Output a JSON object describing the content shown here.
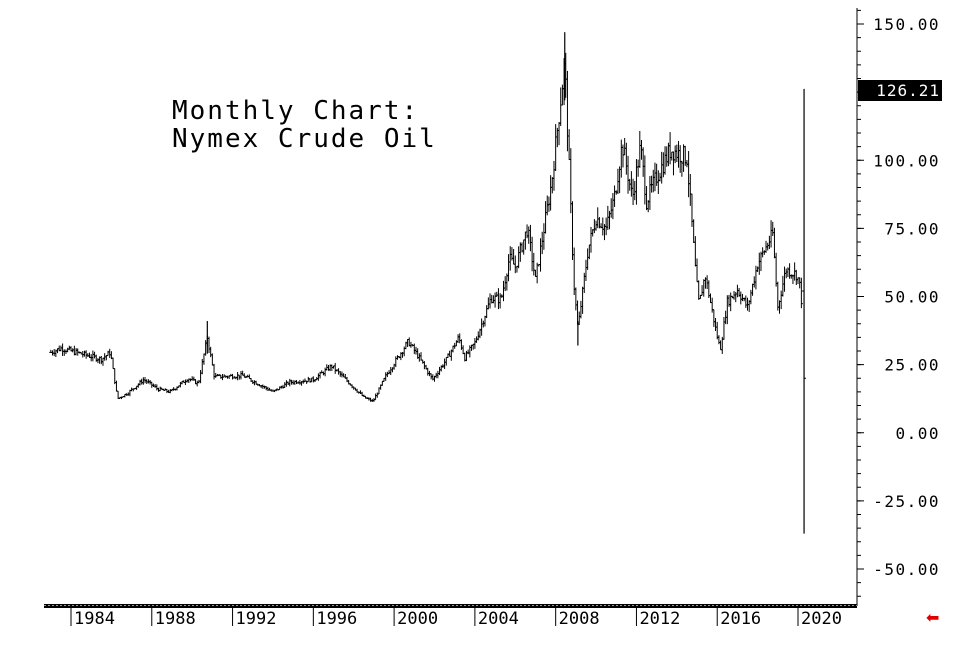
{
  "chart_data": {
    "type": "ohlc",
    "title_lines": [
      "Monthly Chart:",
      "Nymex Crude Oil"
    ],
    "ylim": [
      -62,
      155
    ],
    "y_ticks": [
      150,
      125,
      100,
      75,
      50,
      25,
      0,
      -25,
      -50
    ],
    "y_tick_labels": [
      "150.00",
      "",
      "100.00",
      "75.00",
      "50.00",
      "25.00",
      "0.00",
      "-25.00",
      "-50.00"
    ],
    "x_ticks": [
      1984,
      1988,
      1992,
      1996,
      2000,
      2004,
      2008,
      2012,
      2016,
      2020
    ],
    "x_tick_labels": [
      "1984",
      "1988",
      "1992",
      "1996",
      "2000",
      "2004",
      "2008",
      "2012",
      "2016",
      "2020"
    ],
    "xlim": [
      1982.6,
      2021.0
    ],
    "last_value_label": "126.21",
    "anchors": [
      {
        "t": 1983.0,
        "v": 29.5
      },
      {
        "t": 1983.5,
        "v": 31.0
      },
      {
        "t": 1984.5,
        "v": 29.0
      },
      {
        "t": 1985.5,
        "v": 27.0
      },
      {
        "t": 1985.95,
        "v": 29.5
      },
      {
        "t": 1986.3,
        "v": 12.5
      },
      {
        "t": 1986.8,
        "v": 14.5
      },
      {
        "t": 1987.6,
        "v": 19.5
      },
      {
        "t": 1988.3,
        "v": 16.0
      },
      {
        "t": 1988.9,
        "v": 15.0
      },
      {
        "t": 1989.8,
        "v": 20.0
      },
      {
        "t": 1990.3,
        "v": 18.0
      },
      {
        "t": 1990.75,
        "v": 35.0
      },
      {
        "t": 1991.1,
        "v": 20.5
      },
      {
        "t": 1992.5,
        "v": 21.0
      },
      {
        "t": 1993.5,
        "v": 17.0
      },
      {
        "t": 1994.0,
        "v": 15.0
      },
      {
        "t": 1994.8,
        "v": 18.5
      },
      {
        "t": 1996.0,
        "v": 19.5
      },
      {
        "t": 1996.9,
        "v": 24.5
      },
      {
        "t": 1997.6,
        "v": 19.5
      },
      {
        "t": 1998.5,
        "v": 13.0
      },
      {
        "t": 1998.95,
        "v": 11.5
      },
      {
        "t": 1999.6,
        "v": 21.0
      },
      {
        "t": 2000.7,
        "v": 33.5
      },
      {
        "t": 2001.2,
        "v": 28.0
      },
      {
        "t": 2001.9,
        "v": 19.5
      },
      {
        "t": 2002.6,
        "v": 27.0
      },
      {
        "t": 2003.2,
        "v": 35.0
      },
      {
        "t": 2003.5,
        "v": 27.5
      },
      {
        "t": 2004.0,
        "v": 33.0
      },
      {
        "t": 2004.8,
        "v": 49.5
      },
      {
        "t": 2005.3,
        "v": 49.0
      },
      {
        "t": 2005.7,
        "v": 64.0
      },
      {
        "t": 2006.0,
        "v": 61.0
      },
      {
        "t": 2006.6,
        "v": 75.0
      },
      {
        "t": 2007.0,
        "v": 56.0
      },
      {
        "t": 2007.8,
        "v": 92.0
      },
      {
        "t": 2008.45,
        "v": 136.0
      },
      {
        "t": 2008.9,
        "v": 55.0
      },
      {
        "t": 2009.1,
        "v": 38.0
      },
      {
        "t": 2009.6,
        "v": 67.0
      },
      {
        "t": 2010.0,
        "v": 79.0
      },
      {
        "t": 2010.5,
        "v": 75.0
      },
      {
        "t": 2010.9,
        "v": 86.0
      },
      {
        "t": 2011.3,
        "v": 106.0
      },
      {
        "t": 2011.8,
        "v": 86.0
      },
      {
        "t": 2012.2,
        "v": 105.0
      },
      {
        "t": 2012.5,
        "v": 85.0
      },
      {
        "t": 2013.0,
        "v": 94.0
      },
      {
        "t": 2013.7,
        "v": 104.0
      },
      {
        "t": 2014.5,
        "v": 101.0
      },
      {
        "t": 2014.95,
        "v": 57.0
      },
      {
        "t": 2015.1,
        "v": 47.0
      },
      {
        "t": 2015.4,
        "v": 58.0
      },
      {
        "t": 2015.95,
        "v": 37.0
      },
      {
        "t": 2016.15,
        "v": 30.5
      },
      {
        "t": 2016.5,
        "v": 48.0
      },
      {
        "t": 2017.0,
        "v": 52.5
      },
      {
        "t": 2017.5,
        "v": 46.0
      },
      {
        "t": 2018.0,
        "v": 62.0
      },
      {
        "t": 2018.75,
        "v": 73.0
      },
      {
        "t": 2019.0,
        "v": 46.0
      },
      {
        "t": 2019.4,
        "v": 60.0
      },
      {
        "t": 2019.95,
        "v": 58.0
      },
      {
        "t": 2020.15,
        "v": 52.0
      },
      {
        "t": 2020.3,
        "v": 22.0
      }
    ],
    "final_bar": {
      "t": 2020.3,
      "high": 126.21,
      "low": -37.0,
      "open": 52.0,
      "close": 20.0
    },
    "spike_bars": [
      {
        "t": 1990.75,
        "high": 41.0,
        "low": 29.0
      },
      {
        "t": 2008.45,
        "high": 147.0,
        "low": 122.0
      },
      {
        "t": 2009.1,
        "high": 41.0,
        "low": 32.0
      }
    ],
    "colors": {
      "ink": "#000000",
      "band": "#c8a000",
      "arrow": "#e00000"
    }
  }
}
